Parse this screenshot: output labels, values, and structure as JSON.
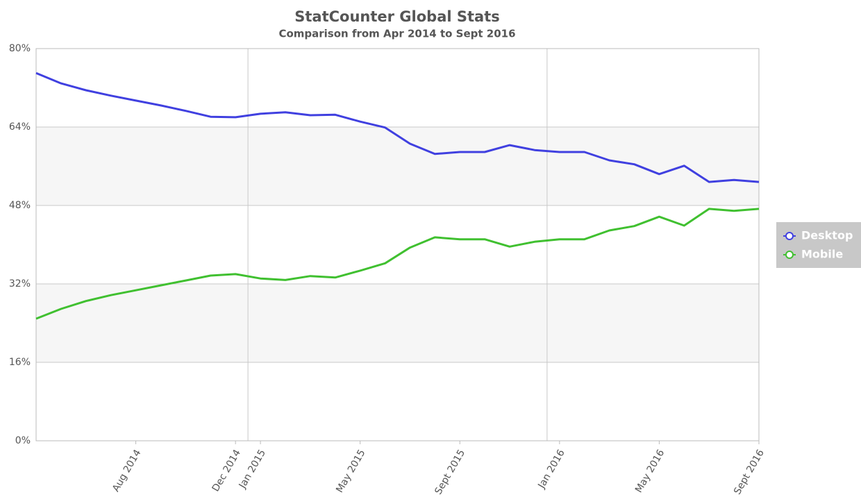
{
  "chart_data": {
    "type": "line",
    "title": "StatCounter Global Stats",
    "subtitle": "Comparison from Apr 2014 to Sept 2016",
    "categories": [
      null,
      null,
      null,
      null,
      "Aug 2014",
      null,
      null,
      null,
      "Dec 2014",
      "Jan 2015",
      null,
      null,
      null,
      "May 2015",
      null,
      null,
      null,
      "Sept 2015",
      null,
      null,
      null,
      "Jan 2016",
      null,
      null,
      null,
      "May 2016",
      null,
      null,
      null,
      "Sept 2016"
    ],
    "series": [
      {
        "name": "Desktop",
        "color": "#4040e0",
        "values": [
          75.0,
          72.9,
          71.5,
          70.4,
          69.4,
          68.4,
          67.3,
          66.1,
          66.0,
          66.7,
          67.0,
          66.4,
          66.5,
          65.1,
          63.9,
          60.6,
          58.5,
          58.9,
          58.9,
          60.3,
          59.3,
          58.9,
          58.9,
          57.2,
          56.4,
          54.4,
          56.1,
          52.8,
          53.2,
          52.8
        ]
      },
      {
        "name": "Mobile",
        "color": "#40c030",
        "values": [
          24.9,
          26.9,
          28.5,
          29.7,
          30.7,
          31.7,
          32.7,
          33.7,
          34.0,
          33.1,
          32.8,
          33.6,
          33.3,
          34.7,
          36.2,
          39.4,
          41.5,
          41.1,
          41.1,
          39.6,
          40.6,
          41.1,
          41.1,
          42.9,
          43.8,
          45.7,
          43.9,
          47.3,
          46.9,
          47.3
        ]
      }
    ],
    "ylim": [
      0,
      80
    ],
    "yticks": [
      {
        "value": 0,
        "label": "0%"
      },
      {
        "value": 16,
        "label": "16%"
      },
      {
        "value": 32,
        "label": "32%"
      },
      {
        "value": 48,
        "label": "48%"
      },
      {
        "value": 64,
        "label": "64%"
      },
      {
        "value": 80,
        "label": "80%"
      }
    ],
    "grid": true,
    "legend": "right"
  }
}
